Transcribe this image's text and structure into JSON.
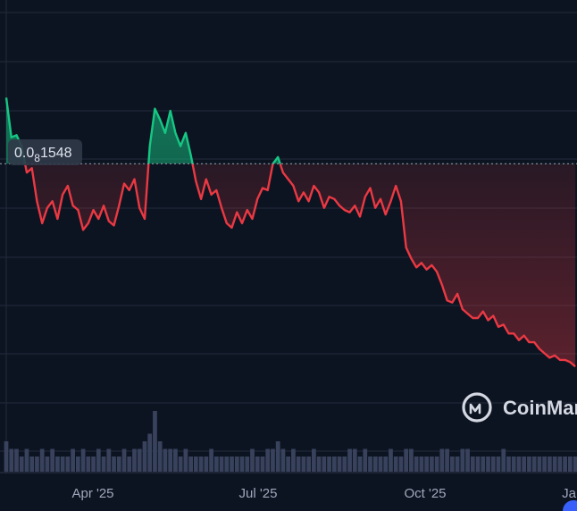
{
  "chart_data": {
    "type": "area",
    "reference_label_main": "0.0",
    "reference_label_sub": "8",
    "reference_label_tail": "1548",
    "x_ticks": [
      "Apr '25",
      "Jul '25",
      "Oct '25",
      "Ja"
    ],
    "watermark": "CoinMar",
    "colors": {
      "background": "#0d1421",
      "up": "#16c784",
      "down": "#ea3943",
      "grid": "#222a3a",
      "volume": "#38425c",
      "reference": "#8f96a8"
    },
    "ylim": [
      0.5,
      2.0
    ],
    "reference_value": 1.5,
    "series": [
      {
        "x": [
          "2025-02-01",
          "2025-02-04",
          "2025-02-07",
          "2025-02-10",
          "2025-02-13",
          "2025-02-16",
          "2025-02-19",
          "2025-02-22",
          "2025-02-25",
          "2025-02-28",
          "2025-03-03",
          "2025-03-06",
          "2025-03-09",
          "2025-03-12",
          "2025-03-15",
          "2025-03-18",
          "2025-03-21",
          "2025-03-24",
          "2025-03-27",
          "2025-03-30",
          "2025-04-02",
          "2025-04-05",
          "2025-04-08",
          "2025-04-11",
          "2025-04-14",
          "2025-04-17",
          "2025-04-20",
          "2025-04-23",
          "2025-04-26",
          "2025-04-29",
          "2025-05-02",
          "2025-05-05",
          "2025-05-08",
          "2025-05-11",
          "2025-05-14",
          "2025-05-17",
          "2025-05-20",
          "2025-05-23",
          "2025-05-26",
          "2025-05-29",
          "2025-06-01",
          "2025-06-04",
          "2025-06-07",
          "2025-06-10",
          "2025-06-13",
          "2025-06-16",
          "2025-06-19",
          "2025-06-22",
          "2025-06-25",
          "2025-06-28",
          "2025-07-01",
          "2025-07-04",
          "2025-07-07",
          "2025-07-10",
          "2025-07-13",
          "2025-07-16",
          "2025-07-19",
          "2025-07-22",
          "2025-07-25",
          "2025-07-28",
          "2025-07-31",
          "2025-08-03",
          "2025-08-06",
          "2025-08-09",
          "2025-08-12",
          "2025-08-15",
          "2025-08-18",
          "2025-08-21",
          "2025-08-24",
          "2025-08-27",
          "2025-08-30",
          "2025-09-02",
          "2025-09-05",
          "2025-09-08",
          "2025-09-11",
          "2025-09-14",
          "2025-09-17",
          "2025-09-20",
          "2025-09-23",
          "2025-09-26",
          "2025-09-29",
          "2025-10-02",
          "2025-10-05",
          "2025-10-08",
          "2025-10-11",
          "2025-10-14",
          "2025-10-17",
          "2025-10-20",
          "2025-10-23",
          "2025-10-26",
          "2025-10-29",
          "2025-11-01",
          "2025-11-04",
          "2025-11-07",
          "2025-11-10",
          "2025-11-13",
          "2025-11-16",
          "2025-11-19",
          "2025-11-22",
          "2025-11-25",
          "2025-11-28",
          "2025-12-01",
          "2025-12-04",
          "2025-12-07",
          "2025-12-10",
          "2025-12-13",
          "2025-12-16",
          "2025-12-19",
          "2025-12-22",
          "2025-12-25",
          "2025-12-28",
          "2025-12-31"
        ],
        "values": [
          1.8,
          1.62,
          1.63,
          1.58,
          1.46,
          1.48,
          1.33,
          1.23,
          1.3,
          1.33,
          1.25,
          1.36,
          1.4,
          1.31,
          1.29,
          1.2,
          1.23,
          1.29,
          1.25,
          1.31,
          1.24,
          1.22,
          1.31,
          1.41,
          1.38,
          1.43,
          1.3,
          1.25,
          1.58,
          1.75,
          1.7,
          1.64,
          1.74,
          1.64,
          1.58,
          1.64,
          1.54,
          1.42,
          1.34,
          1.43,
          1.36,
          1.38,
          1.3,
          1.23,
          1.21,
          1.28,
          1.23,
          1.29,
          1.25,
          1.34,
          1.39,
          1.38,
          1.5,
          1.53,
          1.46,
          1.43,
          1.4,
          1.33,
          1.37,
          1.33,
          1.4,
          1.37,
          1.3,
          1.35,
          1.34,
          1.31,
          1.29,
          1.28,
          1.31,
          1.26,
          1.35,
          1.39,
          1.3,
          1.34,
          1.27,
          1.33,
          1.4,
          1.33,
          1.12,
          1.07,
          1.03,
          1.05,
          1.02,
          1.04,
          1.01,
          0.95,
          0.88,
          0.87,
          0.91,
          0.84,
          0.82,
          0.8,
          0.8,
          0.83,
          0.79,
          0.81,
          0.76,
          0.77,
          0.73,
          0.73,
          0.7,
          0.72,
          0.69,
          0.69,
          0.66,
          0.64,
          0.62,
          0.63,
          0.61,
          0.61,
          0.6,
          0.58
        ]
      }
    ],
    "volume": [
      4,
      3,
      3,
      2,
      3,
      2,
      2,
      3,
      2,
      3,
      2,
      2,
      2,
      3,
      2,
      3,
      2,
      2,
      3,
      2,
      3,
      2,
      2,
      3,
      2,
      3,
      3,
      4,
      5,
      8,
      4,
      3,
      3,
      3,
      2,
      3,
      2,
      2,
      2,
      2,
      3,
      2,
      2,
      2,
      2,
      2,
      2,
      2,
      3,
      2,
      2,
      3,
      3,
      4,
      3,
      2,
      3,
      2,
      2,
      2,
      3,
      2,
      2,
      2,
      2,
      2,
      2,
      3,
      3,
      2,
      3,
      2,
      2,
      2,
      2,
      3,
      2,
      2,
      3,
      3,
      2,
      2,
      2,
      2,
      2,
      3,
      3,
      2,
      2,
      3,
      3,
      2,
      2,
      2,
      2,
      2,
      2,
      3,
      2,
      2,
      2,
      2,
      2,
      2,
      2,
      2,
      2,
      2,
      2,
      2,
      2,
      2
    ]
  }
}
